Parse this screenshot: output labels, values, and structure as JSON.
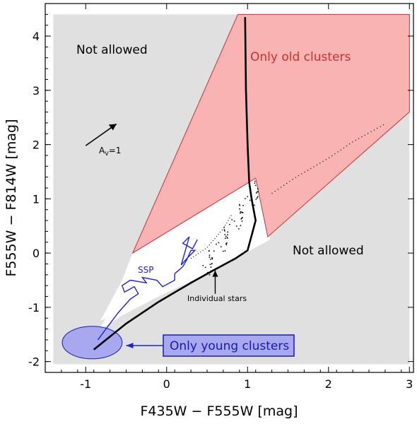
{
  "chart_data": {
    "type": "scatter",
    "title": "",
    "xlabel": "F435W − F555W [mag]",
    "ylabel": "F555W − F814W [mag]",
    "xlim": [
      -1.5,
      3.05
    ],
    "ylim": [
      -2.2,
      4.6
    ],
    "x_ticks": [
      -1,
      0,
      1,
      2,
      3
    ],
    "y_ticks": [
      -2,
      -1,
      0,
      1,
      2,
      3,
      4
    ],
    "grid": false,
    "regions": {
      "not_allowed_1": {
        "label": "Not allowed",
        "color": "#e0e0e0"
      },
      "not_allowed_2": {
        "label": "Not allowed",
        "color": "#e0e0e0"
      },
      "old_clusters": {
        "label": "Only old clusters",
        "color": "#f9b3b3",
        "label_color": "#c83232",
        "polygon": [
          [
            -0.42,
            0.0
          ],
          [
            0.88,
            4.4
          ],
          [
            3.0,
            4.4
          ],
          [
            3.0,
            2.6
          ],
          [
            1.25,
            0.3
          ],
          [
            1.1,
            1.38
          ],
          [
            -0.42,
            0.0
          ]
        ]
      },
      "young_clusters": {
        "label": "Only young clusters",
        "color": "#a8a8f0",
        "label_color": "#1a1aa8",
        "center": [
          -0.92,
          -1.65
        ],
        "radius": [
          0.37,
          0.3
        ]
      },
      "allowed_polygon": [
        [
          -0.42,
          0.0
        ],
        [
          1.1,
          1.38
        ],
        [
          1.28,
          0.25
        ],
        [
          0.85,
          -0.1
        ],
        [
          0.4,
          -0.45
        ],
        [
          -0.1,
          -0.8
        ],
        [
          -0.55,
          -1.15
        ],
        [
          -0.85,
          -1.45
        ],
        [
          -0.75,
          -1.2
        ],
        [
          -0.82,
          -1.25
        ],
        [
          -0.55,
          -0.5
        ],
        [
          -0.42,
          0.0
        ]
      ]
    },
    "series": [
      {
        "name": "SSP",
        "color": "#2222cc",
        "points": [
          [
            -0.85,
            -1.6
          ],
          [
            -0.75,
            -1.4
          ],
          [
            -0.6,
            -1.1
          ],
          [
            -0.45,
            -0.85
          ],
          [
            -0.35,
            -0.75
          ],
          [
            -0.4,
            -0.62
          ],
          [
            -0.52,
            -0.72
          ],
          [
            -0.55,
            -0.6
          ],
          [
            -0.45,
            -0.5
          ],
          [
            -0.25,
            -0.55
          ],
          [
            -0.3,
            -0.45
          ],
          [
            -0.12,
            -0.5
          ],
          [
            -0.05,
            -0.62
          ],
          [
            0.1,
            -0.5
          ],
          [
            0.1,
            -0.38
          ],
          [
            0.2,
            -0.25
          ],
          [
            0.25,
            -0.12
          ],
          [
            0.3,
            0.05
          ],
          [
            0.35,
            0.05
          ],
          [
            0.25,
            -0.1
          ],
          [
            0.18,
            -0.22
          ],
          [
            0.28,
            0.3
          ],
          [
            0.2,
            0.18
          ],
          [
            0.32,
            0.08
          ],
          [
            0.38,
            0.25
          ]
        ]
      },
      {
        "name": "Individual stars",
        "color": "#000000",
        "points": [
          [
            -0.9,
            -1.78
          ],
          [
            -0.5,
            -1.3
          ],
          [
            -0.1,
            -0.9
          ],
          [
            0.3,
            -0.55
          ],
          [
            0.6,
            -0.3
          ],
          [
            0.85,
            -0.1
          ],
          [
            1.0,
            0.05
          ],
          [
            1.1,
            0.6
          ],
          [
            1.05,
            1.0
          ],
          [
            1.02,
            1.3
          ],
          [
            1.0,
            2.0
          ],
          [
            0.98,
            3.0
          ],
          [
            0.97,
            4.35
          ],
          [
            1.3,
            1.1
          ],
          [
            1.6,
            1.4
          ],
          [
            2.0,
            1.75
          ],
          [
            2.3,
            2.05
          ],
          [
            2.6,
            2.3
          ],
          [
            2.7,
            2.38
          ],
          [
            0.3,
            -0.1
          ],
          [
            0.5,
            0.1
          ],
          [
            0.7,
            0.45
          ],
          [
            0.8,
            0.7
          ]
        ]
      }
    ],
    "annotations": {
      "reddening_label": "A",
      "reddening_sub": "V",
      "reddening_suffix": "=1",
      "reddening_arrow": {
        "from": [
          -1.0,
          1.98
        ],
        "to": [
          -0.62,
          2.38
        ]
      },
      "individual_stars_label": "Individual stars",
      "ssp_label": "SSP"
    }
  },
  "colors": {
    "grey_region": "#e0e0e0",
    "axis": "#000000"
  }
}
